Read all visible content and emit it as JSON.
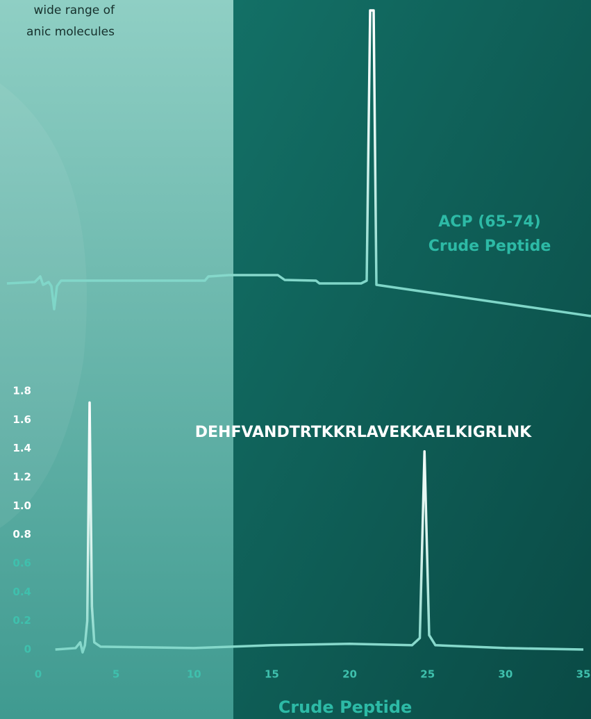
{
  "header": {
    "lines": [
      "wide range of",
      "anic molecules"
    ]
  },
  "top_label": {
    "lines": [
      "ACP (65-74)",
      "Crude Peptide"
    ]
  },
  "sequence": "DEHFVANDTRTKKRLAVEKKAELKIGRLNK",
  "chart_data": {
    "type": "line",
    "title": "Crude Peptide",
    "x": [
      1.1,
      2.4,
      2.7,
      2.85,
      3.0,
      3.15,
      3.3,
      3.45,
      3.6,
      4,
      10,
      15,
      20,
      24,
      24.5,
      24.8,
      25.1,
      25.5,
      30,
      35
    ],
    "series": [
      {
        "color": "#3fc0ad",
        "values": [
          0,
          0.01,
          0.05,
          -0.02,
          0.03,
          0.2,
          1.72,
          0.3,
          0.05,
          0.02,
          0.01,
          0.03,
          0.04,
          0.03,
          0.08,
          1.38,
          0.1,
          0.03,
          0.01,
          0
        ]
      }
    ],
    "xlim": [
      0,
      35
    ],
    "xticks": [
      0,
      5,
      10,
      15,
      20,
      25,
      30,
      35
    ],
    "ylim": [
      0,
      1.8
    ],
    "yticks": [
      {
        "value": 0,
        "label": "0"
      },
      {
        "value": 0.2,
        "label": "0.2"
      },
      {
        "value": 0.4,
        "label": "0.4"
      },
      {
        "value": 0.6,
        "label": "0.6"
      },
      {
        "value": 0.8,
        "label": "0.8"
      },
      {
        "value": 1.0,
        "label": "1.0"
      },
      {
        "value": 1.2,
        "label": "1.2"
      },
      {
        "value": 1.4,
        "label": "1.4"
      },
      {
        "value": 1.6,
        "label": "1.6"
      },
      {
        "value": 1.8,
        "label": "1.8"
      }
    ]
  }
}
